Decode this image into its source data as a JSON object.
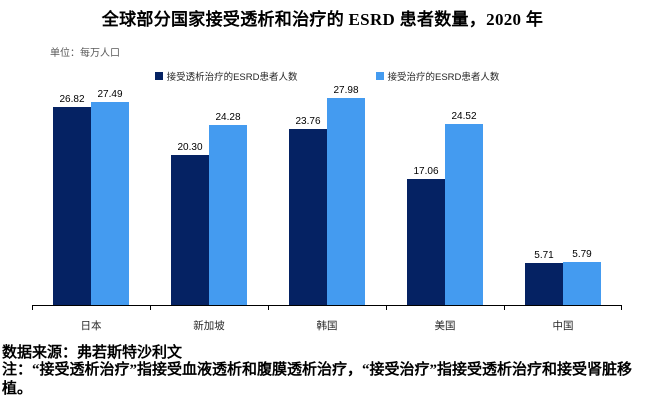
{
  "chart_data": {
    "type": "bar",
    "title": "全球部分国家接受透析和治疗的 ESRD 患者数量，2020 年",
    "unit_label": "单位：每万人口",
    "categories": [
      "日本",
      "新加坡",
      "韩国",
      "美国",
      "中国"
    ],
    "series": [
      {
        "name": "接受透析治疗的ESRD患者人数",
        "color": "#052263",
        "values": [
          26.82,
          20.3,
          23.76,
          17.06,
          5.71
        ]
      },
      {
        "name": "接受治疗的ESRD患者人数",
        "color": "#449bf0",
        "values": [
          27.49,
          24.28,
          27.98,
          24.52,
          5.79
        ]
      }
    ],
    "xlabel": "",
    "ylabel": "每万人口",
    "ylim": [
      0,
      28
    ],
    "grid": false,
    "legend_position": "top",
    "value_labels": true,
    "value_label_decimals": 2,
    "axis_color": "#000000"
  },
  "footer": {
    "source": "数据来源：弗若斯特沙利文",
    "note": "注：“接受透析治疗”指接受血液透析和腹膜透析治疗，“接受治疗”指接受透析治疗和接受肾脏移植。"
  }
}
